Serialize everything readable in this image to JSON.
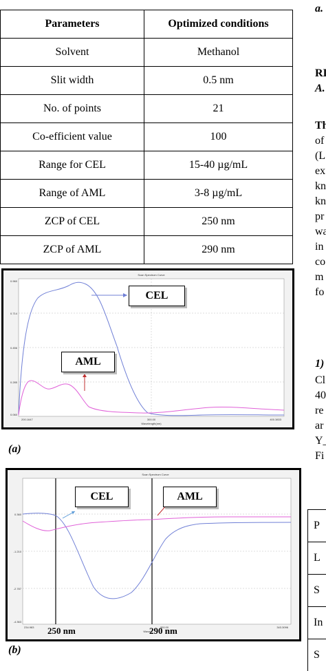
{
  "header_fragment": "a.",
  "table": {
    "headers": [
      "Parameters",
      "Optimized conditions"
    ],
    "rows": [
      [
        "Solvent",
        "Methanol"
      ],
      [
        "Slit width",
        "0.5 nm"
      ],
      [
        "No. of points",
        "21"
      ],
      [
        "Co-efficient value",
        "100"
      ],
      [
        "Range for CEL",
        "15-40 µg/mL"
      ],
      [
        "Range of AML",
        "3-8 µg/mL"
      ],
      [
        "ZCP of CEL",
        "250 nm"
      ],
      [
        "ZCP of AML",
        "290 nm"
      ]
    ]
  },
  "figure_a": {
    "label": "(a)",
    "plot_title": "Scan Spectrum Curve",
    "x_axis_label": "Wavelength(nm)",
    "x_ticks": [
      "200.1647",
      "300.00",
      "400.3833"
    ],
    "y_ticks": [
      "0.960",
      "0.714",
      "0.456",
      "0.285",
      "0.060"
    ],
    "callouts": [
      "CEL",
      "AML"
    ],
    "colors": {
      "cel": "#6f7fd6",
      "aml": "#e060d8"
    }
  },
  "figure_b": {
    "label": "(b)",
    "plot_title": "Scan Spectrum Curve",
    "x_axis_label": "Wavele",
    "x_ticks": [
      "234.983",
      "300.00",
      "343.3096"
    ],
    "y_ticks": [
      "0.360",
      "-1.210",
      "-2.787",
      "-4.363"
    ],
    "callouts": [
      "CEL",
      "AML"
    ],
    "zcp_labels": [
      "250 nm",
      "290 nm"
    ],
    "colors": {
      "cel": "#6f7fd6",
      "aml": "#e060d8"
    }
  },
  "right_column": {
    "headings": [
      "RI",
      "A."
    ],
    "para1": [
      "Th",
      "of",
      "(L",
      "ex",
      "kn",
      "kn",
      "pr",
      "wa",
      "in",
      "co",
      "m",
      "fo"
    ],
    "para2_heading": "1)",
    "para2": [
      "Cl",
      "40",
      "re",
      "ar",
      "Y_",
      "Fi"
    ],
    "table_frag": [
      "P",
      "L",
      "S",
      "In",
      "S"
    ]
  }
}
